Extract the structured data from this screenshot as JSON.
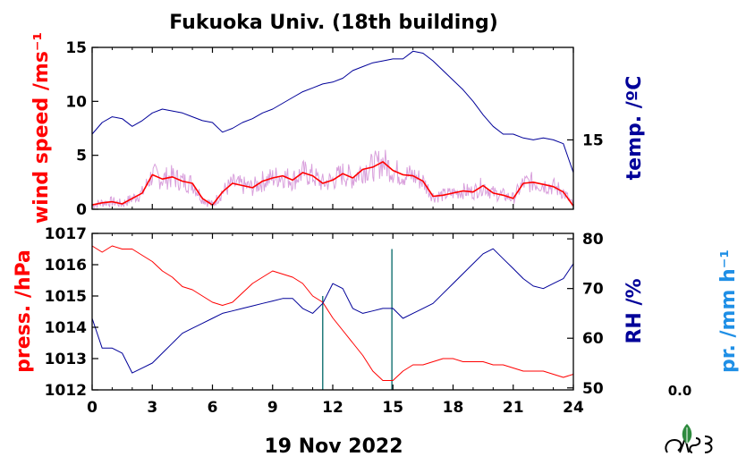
{
  "title": "Fukuoka Univ. (18th building)",
  "xlabel": "19 Nov 2022",
  "colors": {
    "wind_raw": "#d9a0dc",
    "wind_avg": "#ff0000",
    "temp": "#000099",
    "press": "#ff0000",
    "rh": "#000099",
    "precip": "#1f8fe6",
    "precip_bar": "#006666"
  },
  "chart_data": [
    {
      "type": "line",
      "panel": "top",
      "x_ticks": [
        0,
        3,
        6,
        9,
        12,
        15,
        18,
        21,
        24
      ],
      "x_range": [
        0,
        24
      ],
      "left_axis": {
        "label": "wind speed /ms⁻¹",
        "range": [
          0,
          15
        ],
        "ticks": [
          0,
          5,
          10,
          15
        ]
      },
      "right_axis": {
        "label": "temp. /ºC",
        "range": [
          11.4,
          19.8
        ],
        "ticks": [
          15
        ]
      },
      "series": [
        {
          "axis": "left",
          "style": "smoothed",
          "x": [
            0,
            0.5,
            1,
            1.5,
            2,
            2.5,
            3,
            3.5,
            4,
            4.5,
            5,
            5.5,
            6,
            6.5,
            7,
            7.5,
            8,
            8.5,
            9,
            9.5,
            10,
            10.5,
            11,
            11.5,
            12,
            12.5,
            13,
            13.5,
            14,
            14.5,
            15,
            15.5,
            16,
            16.5,
            17,
            17.5,
            18,
            18.5,
            19,
            19.5,
            20,
            20.5,
            21,
            21.5,
            22,
            22.5,
            23,
            23.5,
            24
          ],
          "values": [
            0.4,
            0.6,
            0.7,
            0.5,
            1.0,
            1.5,
            3.2,
            2.8,
            3.0,
            2.6,
            2.4,
            1.0,
            0.4,
            1.6,
            2.4,
            2.2,
            2.0,
            2.6,
            2.9,
            3.1,
            2.7,
            3.4,
            3.1,
            2.4,
            2.7,
            3.3,
            2.9,
            3.7,
            3.9,
            4.4,
            3.6,
            3.2,
            3.1,
            2.6,
            1.2,
            1.3,
            1.5,
            1.7,
            1.6,
            2.2,
            1.5,
            1.3,
            1.0,
            2.4,
            2.5,
            2.3,
            2.1,
            1.6,
            0.3
          ]
        },
        {
          "axis": "right",
          "x": [
            0,
            0.5,
            1,
            1.5,
            2,
            2.5,
            3,
            3.5,
            4,
            4.5,
            5,
            5.5,
            6,
            6.5,
            7,
            7.5,
            8,
            8.5,
            9,
            9.5,
            10,
            10.5,
            11,
            11.5,
            12,
            12.5,
            13,
            13.5,
            14,
            14.5,
            15,
            15.5,
            16,
            16.5,
            17,
            17.5,
            18,
            18.5,
            19,
            19.5,
            20,
            20.5,
            21,
            21.5,
            22,
            22.5,
            23,
            23.5,
            24
          ],
          "values": [
            15.3,
            15.9,
            16.2,
            16.1,
            15.7,
            16.0,
            16.4,
            16.6,
            16.5,
            16.4,
            16.2,
            16.0,
            15.9,
            15.4,
            15.6,
            15.9,
            16.1,
            16.4,
            16.6,
            16.9,
            17.2,
            17.5,
            17.7,
            17.9,
            18.0,
            18.2,
            18.6,
            18.8,
            19.0,
            19.1,
            19.2,
            19.2,
            19.6,
            19.5,
            19.1,
            18.6,
            18.1,
            17.6,
            17.0,
            16.3,
            15.7,
            15.3,
            15.3,
            15.1,
            15.0,
            15.1,
            15.0,
            14.8,
            13.3
          ]
        }
      ]
    },
    {
      "type": "line",
      "panel": "bottom",
      "x_ticks": [
        0,
        3,
        6,
        9,
        12,
        15,
        18,
        21,
        24
      ],
      "x_range": [
        0,
        24
      ],
      "left_axis": {
        "label": "press. /hPa",
        "range": [
          1012,
          1017
        ],
        "ticks": [
          1012,
          1013,
          1014,
          1015,
          1016,
          1017
        ]
      },
      "right_axis": {
        "label": "RH /%",
        "range": [
          49.6,
          81.1
        ],
        "ticks": [
          50,
          60,
          70,
          80
        ]
      },
      "precip_axis": {
        "label": "pr. /mm h⁻¹",
        "value_label": "0.0",
        "range": [
          0,
          1
        ]
      },
      "series": [
        {
          "axis": "left",
          "x": [
            0,
            0.5,
            1,
            1.5,
            2,
            2.5,
            3,
            3.5,
            4,
            4.5,
            5,
            5.5,
            6,
            6.5,
            7,
            7.5,
            8,
            8.5,
            9,
            9.5,
            10,
            10.5,
            11,
            11.5,
            12,
            12.5,
            13,
            13.5,
            14,
            14.5,
            15,
            15.5,
            16,
            16.5,
            17,
            17.5,
            18,
            18.5,
            19,
            19.5,
            20,
            20.5,
            21,
            21.5,
            22,
            22.5,
            23,
            23.5,
            24
          ],
          "values": [
            1016.6,
            1016.4,
            1016.6,
            1016.5,
            1016.5,
            1016.3,
            1016.1,
            1015.8,
            1015.6,
            1015.3,
            1015.2,
            1015.0,
            1014.8,
            1014.7,
            1014.8,
            1015.1,
            1015.4,
            1015.6,
            1015.8,
            1015.7,
            1015.6,
            1015.4,
            1015.0,
            1014.8,
            1014.3,
            1013.9,
            1013.5,
            1013.1,
            1012.6,
            1012.3,
            1012.3,
            1012.6,
            1012.8,
            1012.8,
            1012.9,
            1013.0,
            1013.0,
            1012.9,
            1012.9,
            1012.9,
            1012.8,
            1012.8,
            1012.7,
            1012.6,
            1012.6,
            1012.6,
            1012.5,
            1012.4,
            1012.5
          ]
        },
        {
          "axis": "right",
          "x": [
            0,
            0.5,
            1,
            1.5,
            2,
            2.5,
            3,
            3.5,
            4,
            4.5,
            5,
            5.5,
            6,
            6.5,
            7,
            7.5,
            8,
            8.5,
            9,
            9.5,
            10,
            10.5,
            11,
            11.5,
            12,
            12.5,
            13,
            13.5,
            14,
            14.5,
            15,
            15.5,
            16,
            16.5,
            17,
            17.5,
            18,
            18.5,
            19,
            19.5,
            20,
            20.5,
            21,
            21.5,
            22,
            22.5,
            23,
            23.5,
            24
          ],
          "values": [
            64,
            58,
            58,
            57,
            53,
            54,
            55,
            57,
            59,
            61,
            62,
            63,
            64,
            65,
            65.5,
            66,
            66.5,
            67,
            67.5,
            68,
            68,
            66,
            65,
            67,
            71,
            70,
            66,
            65,
            65.5,
            66,
            66,
            64,
            65,
            66,
            67,
            69,
            71,
            73,
            75,
            77,
            78,
            76,
            74,
            72,
            70.5,
            70,
            71,
            72,
            75
          ]
        }
      ],
      "precip_bars": [
        {
          "x": 11.5,
          "value": 0.6
        },
        {
          "x": 14.95,
          "value": 0.9
        }
      ]
    }
  ]
}
